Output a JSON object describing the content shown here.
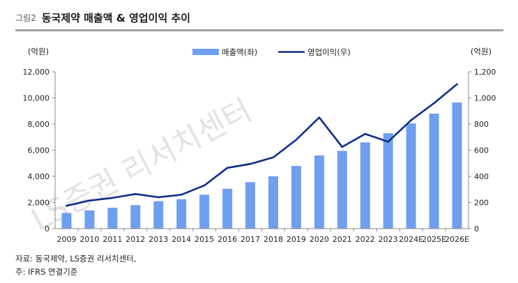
{
  "figure": {
    "label": "그림2",
    "title": "동국제약 매출액 & 영업이익 추이"
  },
  "watermark": "LS증권 리서치센터",
  "footer": {
    "source": "자료: 동국제약, LS증권 리서치센터,",
    "note": "주: IFRS 연결기준"
  },
  "colors": {
    "bar": "#6f9ff0",
    "line": "#0d2d8c",
    "axis": "#8a8a8a",
    "title_rule": "#9e9e9e"
  },
  "chart_data": {
    "type": "bar",
    "categories": [
      "2009",
      "2010",
      "2011",
      "2012",
      "2013",
      "2014",
      "2015",
      "2016",
      "2017",
      "2018",
      "2019",
      "2020",
      "2021",
      "2022",
      "2023",
      "2024E",
      "2025E",
      "2026E"
    ],
    "left_unit": "(억원)",
    "right_unit": "(억원)",
    "left_ticks": [
      "0",
      "2,000",
      "4,000",
      "6,000",
      "8,000",
      "10,000",
      "12,000"
    ],
    "right_ticks": [
      "0",
      "200",
      "400",
      "600",
      "800",
      "1,000",
      "1,200"
    ],
    "ylim_left": [
      0,
      12000
    ],
    "ylim_right": [
      0,
      1200
    ],
    "grid": false,
    "legend_position": "top-center",
    "series": [
      {
        "name": "매출액(좌)",
        "type": "bar",
        "axis": "left",
        "values": [
          1200,
          1400,
          1600,
          1800,
          2100,
          2250,
          2600,
          3050,
          3550,
          4000,
          4800,
          5600,
          5950,
          6600,
          7300,
          8050,
          8800,
          9650
        ]
      },
      {
        "name": "영업이익(우)",
        "type": "line",
        "axis": "right",
        "values": [
          175,
          215,
          235,
          265,
          240,
          260,
          330,
          465,
          495,
          545,
          680,
          850,
          625,
          725,
          665,
          830,
          960,
          1105
        ]
      }
    ]
  }
}
